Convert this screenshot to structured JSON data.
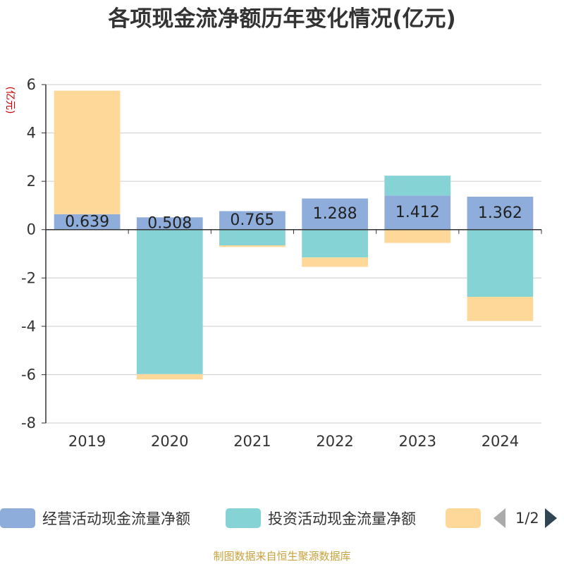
{
  "title": "各项现金流净额历年变化情况(亿元)",
  "footer": "制图数据来自恒生聚源数据库",
  "pager": {
    "text": "1/2"
  },
  "colors": {
    "operating": "#8eadda",
    "investing": "#86d3d6",
    "financing": "#fdd898",
    "axis": "#333333",
    "grid": "#cccccc",
    "unit": "#cc0000"
  },
  "chart_data": {
    "type": "bar",
    "stacked": true,
    "categories": [
      "2019",
      "2020",
      "2021",
      "2022",
      "2023",
      "2024"
    ],
    "ylabel": "(亿元)",
    "ylim": [
      -8,
      6
    ],
    "yticks": [
      -8,
      -6,
      -4,
      -2,
      0,
      2,
      4,
      6
    ],
    "grid": true,
    "legend_position": "bottom",
    "series": [
      {
        "name": "经营活动现金流量净额",
        "color": "#8eadda",
        "values": [
          0.639,
          0.508,
          0.765,
          1.288,
          1.412,
          1.362
        ],
        "labels": [
          "0.639",
          "0.508",
          "0.765",
          "1.288",
          "1.412",
          "1.362"
        ]
      },
      {
        "name": "投资活动现金流量净额",
        "color": "#86d3d6",
        "values": [
          0.0,
          -5.98,
          -0.65,
          -1.15,
          0.82,
          -2.78
        ]
      },
      {
        "name": "",
        "color": "#fdd898",
        "values": [
          5.11,
          -0.22,
          -0.07,
          -0.39,
          -0.55,
          -1.0
        ]
      }
    ]
  }
}
